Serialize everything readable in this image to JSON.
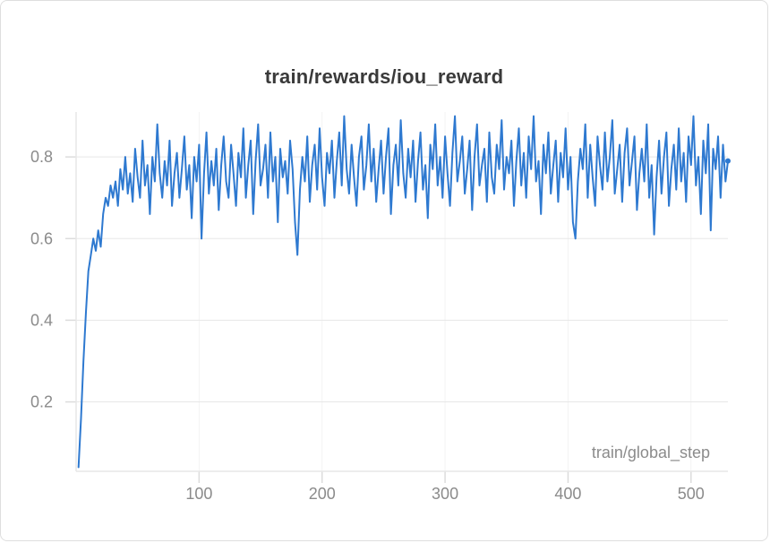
{
  "panel": {
    "background": "#ffffff",
    "border_color": "#dedede"
  },
  "colors": {
    "title": "#3a3a3a",
    "tick_label": "#8b8b8b",
    "grid_major": "#e7e7e7",
    "grid_vertical": "#f3f3f3",
    "axis_line": "#e7e7e7",
    "tick_mark": "#dcdcdc",
    "line": "#2e79d0"
  },
  "chart_data": {
    "type": "line",
    "title": "train/rewards/iou_reward",
    "xlabel": "train/global_step",
    "ylabel": "",
    "x_ticks": [
      100,
      200,
      300,
      400,
      500
    ],
    "y_ticks": [
      0.2,
      0.4,
      0.6,
      0.8
    ],
    "xlim": [
      0,
      530
    ],
    "ylim": [
      0.03,
      0.91
    ],
    "grid": true,
    "legend_position": "none",
    "series": [
      {
        "name": "train/rewards/iou_reward",
        "color": "#2e79d0",
        "x_start": 2,
        "x_step": 2,
        "values": [
          0.04,
          0.16,
          0.3,
          0.42,
          0.52,
          0.56,
          0.6,
          0.57,
          0.62,
          0.58,
          0.66,
          0.7,
          0.68,
          0.73,
          0.7,
          0.74,
          0.68,
          0.77,
          0.72,
          0.8,
          0.71,
          0.76,
          0.69,
          0.82,
          0.75,
          0.7,
          0.84,
          0.73,
          0.78,
          0.66,
          0.8,
          0.74,
          0.88,
          0.76,
          0.7,
          0.79,
          0.73,
          0.84,
          0.68,
          0.76,
          0.81,
          0.7,
          0.77,
          0.85,
          0.72,
          0.78,
          0.65,
          0.8,
          0.74,
          0.83,
          0.6,
          0.76,
          0.86,
          0.71,
          0.79,
          0.73,
          0.82,
          0.67,
          0.78,
          0.85,
          0.74,
          0.7,
          0.83,
          0.76,
          0.68,
          0.81,
          0.75,
          0.87,
          0.7,
          0.78,
          0.84,
          0.66,
          0.79,
          0.88,
          0.73,
          0.77,
          0.83,
          0.7,
          0.86,
          0.74,
          0.8,
          0.64,
          0.82,
          0.75,
          0.79,
          0.71,
          0.84,
          0.77,
          0.64,
          0.56,
          0.72,
          0.8,
          0.74,
          0.85,
          0.69,
          0.78,
          0.83,
          0.72,
          0.87,
          0.75,
          0.68,
          0.81,
          0.76,
          0.84,
          0.7,
          0.79,
          0.86,
          0.73,
          0.9,
          0.77,
          0.71,
          0.83,
          0.75,
          0.68,
          0.8,
          0.85,
          0.72,
          0.78,
          0.88,
          0.74,
          0.82,
          0.69,
          0.77,
          0.84,
          0.71,
          0.8,
          0.87,
          0.66,
          0.78,
          0.83,
          0.73,
          0.89,
          0.76,
          0.7,
          0.82,
          0.75,
          0.84,
          0.69,
          0.79,
          0.86,
          0.72,
          0.78,
          0.65,
          0.83,
          0.77,
          0.88,
          0.73,
          0.8,
          0.7,
          0.85,
          0.76,
          0.68,
          0.81,
          0.9,
          0.74,
          0.79,
          0.85,
          0.71,
          0.77,
          0.84,
          0.67,
          0.8,
          0.88,
          0.73,
          0.78,
          0.82,
          0.69,
          0.86,
          0.75,
          0.71,
          0.83,
          0.77,
          0.89,
          0.72,
          0.8,
          0.76,
          0.84,
          0.68,
          0.79,
          0.87,
          0.73,
          0.81,
          0.7,
          0.85,
          0.77,
          0.9,
          0.74,
          0.79,
          0.66,
          0.83,
          0.76,
          0.86,
          0.71,
          0.78,
          0.84,
          0.69,
          0.81,
          0.75,
          0.87,
          0.72,
          0.8,
          0.64,
          0.6,
          0.74,
          0.82,
          0.77,
          0.88,
          0.7,
          0.83,
          0.75,
          0.68,
          0.85,
          0.78,
          0.72,
          0.86,
          0.74,
          0.8,
          0.89,
          0.71,
          0.77,
          0.83,
          0.69,
          0.81,
          0.87,
          0.73,
          0.79,
          0.85,
          0.67,
          0.76,
          0.82,
          0.74,
          0.88,
          0.7,
          0.78,
          0.61,
          0.75,
          0.84,
          0.71,
          0.8,
          0.86,
          0.68,
          0.77,
          0.83,
          0.72,
          0.87,
          0.74,
          0.81,
          0.69,
          0.85,
          0.78,
          0.9,
          0.73,
          0.8,
          0.66,
          0.84,
          0.76,
          0.88,
          0.62,
          0.82,
          0.77,
          0.85,
          0.7,
          0.83,
          0.74,
          0.79
        ]
      }
    ]
  }
}
